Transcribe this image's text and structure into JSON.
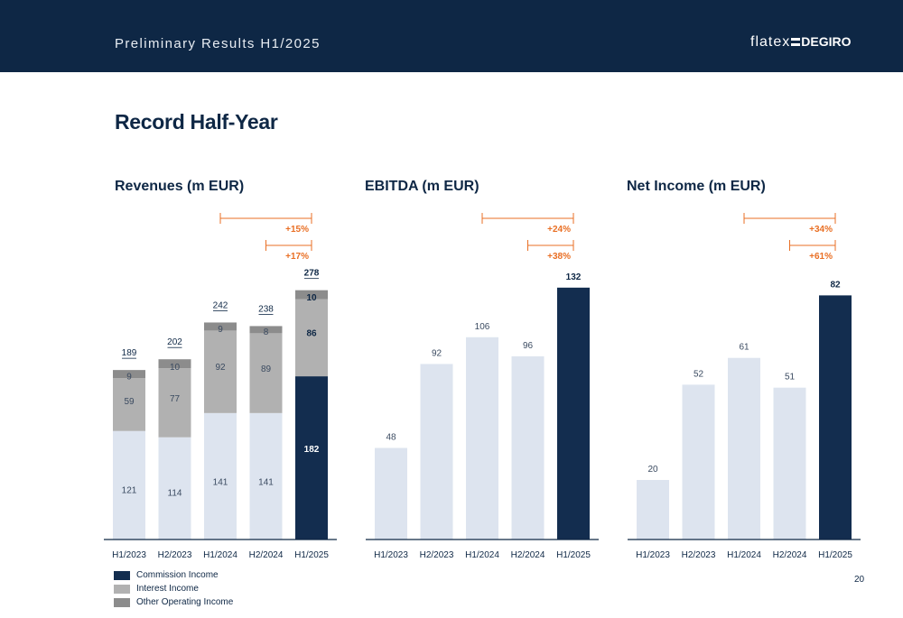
{
  "header": {
    "title": "Preliminary Results H1/2025",
    "logo_text_1": "flatex",
    "logo_text_2": "DEGIRO"
  },
  "page_title": "Record Half-Year",
  "page_number": "20",
  "colors": {
    "header_bg": "#0e2745",
    "commission": "#132d4f",
    "interest": "#b1b1b1",
    "other": "#8c8c8c",
    "light_bar": "#dde4ef",
    "growth": "#e96f24"
  },
  "chart_data": [
    {
      "type": "bar",
      "stacked": true,
      "title": "Revenues (m EUR)",
      "categories": [
        "H1/2023",
        "H2/2023",
        "H1/2024",
        "H2/2024",
        "H1/2025"
      ],
      "series": [
        {
          "name": "Commission Income",
          "values": [
            121,
            114,
            141,
            141,
            182
          ]
        },
        {
          "name": "Interest Income",
          "values": [
            59,
            77,
            92,
            89,
            86
          ]
        },
        {
          "name": "Other Operating Income",
          "values": [
            9,
            10,
            9,
            8,
            10
          ]
        }
      ],
      "totals": [
        "189",
        "202",
        "242",
        "238",
        "278"
      ],
      "growth": [
        {
          "label": "+15%",
          "from": 2,
          "to": 4
        },
        {
          "label": "+17%",
          "from": 3,
          "to": 4
        }
      ],
      "legend": "bottom-left"
    },
    {
      "type": "bar",
      "title": "EBITDA (m EUR)",
      "categories": [
        "H1/2023",
        "H2/2023",
        "H1/2024",
        "H2/2024",
        "H1/2025"
      ],
      "values": [
        48,
        92,
        106,
        96,
        132
      ],
      "growth": [
        {
          "label": "+24%",
          "from": 2,
          "to": 4
        },
        {
          "label": "+38%",
          "from": 3,
          "to": 4
        }
      ]
    },
    {
      "type": "bar",
      "title": "Net Income (m EUR)",
      "categories": [
        "H1/2023",
        "H2/2023",
        "H1/2024",
        "H2/2024",
        "H1/2025"
      ],
      "values": [
        20,
        52,
        61,
        51,
        82
      ],
      "growth": [
        {
          "label": "+34%",
          "from": 2,
          "to": 4
        },
        {
          "label": "+61%",
          "from": 3,
          "to": 4
        }
      ]
    }
  ]
}
